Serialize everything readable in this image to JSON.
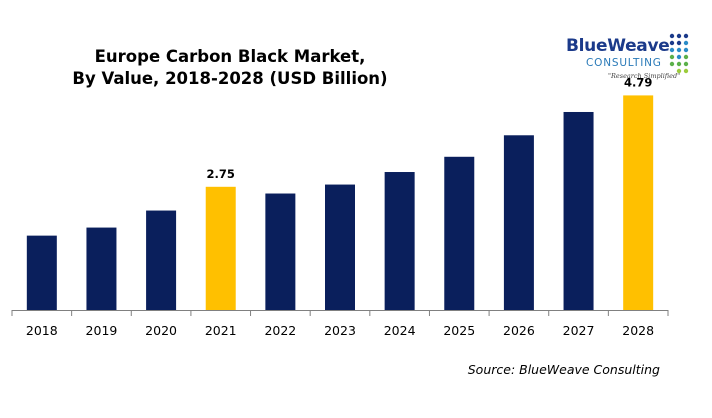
{
  "chart_data": {
    "type": "bar",
    "title": [
      "Europe Carbon Black Market,",
      "By Value, 2018-2028 (USD Billion)"
    ],
    "categories": [
      "2018",
      "2019",
      "2020",
      "2021",
      "2022",
      "2023",
      "2024",
      "2025",
      "2026",
      "2027",
      "2028"
    ],
    "values": [
      1.66,
      1.84,
      2.22,
      2.75,
      2.6,
      2.8,
      3.08,
      3.42,
      3.9,
      4.42,
      4.79
    ],
    "data_labels": {
      "3": "2.75",
      "10": "4.79"
    },
    "highlight_indices": [
      3,
      10
    ],
    "ylim": [
      0,
      5
    ],
    "grid": false,
    "colors": {
      "bar": "#0a1f5c",
      "highlight": "#ffc000",
      "axis": "#808080"
    }
  },
  "logo": {
    "brand": "BlueWeave",
    "sub": "CONSULTING",
    "tag": "\"Research Simplified\""
  },
  "source": "Source: BlueWeave Consulting"
}
